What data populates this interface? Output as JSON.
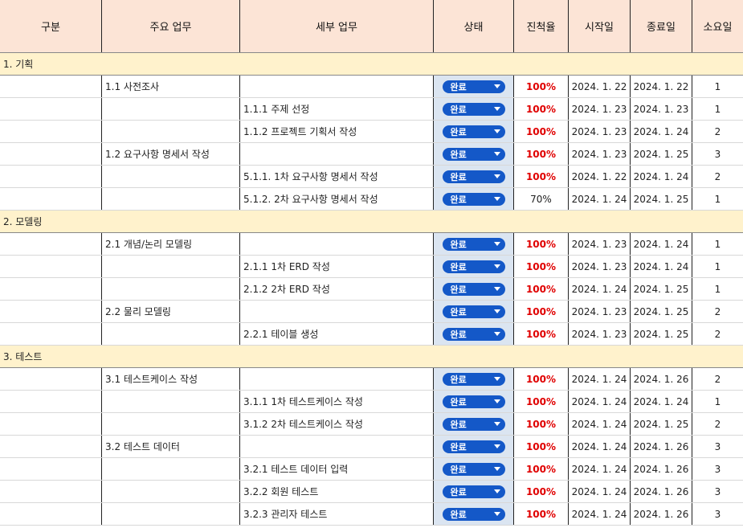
{
  "columns": [
    "구분",
    "주요 업무",
    "세부 업무",
    "상태",
    "진척율",
    "시작일",
    "종료일",
    "소요일"
  ],
  "sections": [
    {
      "title": "1.  기획",
      "rows": [
        {
          "main": "1.1 사전조사",
          "detail": "",
          "status": "완료",
          "progress": "100%",
          "start": "2024. 1. 22",
          "end": "2024. 1. 22",
          "days": "1"
        },
        {
          "main": "",
          "detail": "1.1.1 주제 선정",
          "status": "완료",
          "progress": "100%",
          "start": "2024. 1. 23",
          "end": "2024. 1. 23",
          "days": "1"
        },
        {
          "main": "",
          "detail": "1.1.2 프로젝트 기획서 작성",
          "status": "완료",
          "progress": "100%",
          "start": "2024. 1. 23",
          "end": "2024. 1. 24",
          "days": "2"
        },
        {
          "main": "1.2 요구사항 명세서 작성",
          "detail": "",
          "status": "완료",
          "progress": "100%",
          "start": "2024. 1. 23",
          "end": "2024. 1. 25",
          "days": "3"
        },
        {
          "main": "",
          "detail": "5.1.1. 1차 요구사항 명세서 작성",
          "status": "완료",
          "progress": "100%",
          "start": "2024. 1. 22",
          "end": "2024. 1. 24",
          "days": "2"
        },
        {
          "main": "",
          "detail": "5.1.2. 2차 요구사항 명세서 작성",
          "status": "완료",
          "progress": "70%",
          "start": "2024. 1. 24",
          "end": "2024. 1. 25",
          "days": "1"
        }
      ]
    },
    {
      "title": "2. 모델링",
      "rows": [
        {
          "main": "2.1 개념/논리 모델링",
          "detail": "",
          "status": "완료",
          "progress": "100%",
          "start": "2024. 1. 23",
          "end": "2024. 1. 24",
          "days": "1"
        },
        {
          "main": "",
          "detail": "2.1.1 1차 ERD 작성",
          "status": "완료",
          "progress": "100%",
          "start": "2024. 1. 23",
          "end": "2024. 1. 24",
          "days": "1"
        },
        {
          "main": "",
          "detail": "2.1.2 2차 ERD 작성",
          "status": "완료",
          "progress": "100%",
          "start": "2024. 1. 24",
          "end": "2024. 1. 25",
          "days": "1"
        },
        {
          "main": "2.2 물리 모델링",
          "detail": "",
          "status": "완료",
          "progress": "100%",
          "start": "2024. 1. 23",
          "end": "2024. 1. 25",
          "days": "2"
        },
        {
          "main": "",
          "detail": "2.2.1 테이블 생성",
          "status": "완료",
          "progress": "100%",
          "start": "2024. 1. 23",
          "end": "2024. 1. 25",
          "days": "2"
        }
      ]
    },
    {
      "title": "3. 테스트",
      "rows": [
        {
          "main": "3.1 테스트케이스 작성",
          "detail": "",
          "status": "완료",
          "progress": "100%",
          "start": "2024. 1. 24",
          "end": "2024. 1. 26",
          "days": "2"
        },
        {
          "main": "",
          "detail": "3.1.1 1차 테스트케이스 작성",
          "status": "완료",
          "progress": "100%",
          "start": "2024. 1. 24",
          "end": "2024. 1. 24",
          "days": "1"
        },
        {
          "main": "",
          "detail": "3.1.2 2차 테스트케이스 작성",
          "status": "완료",
          "progress": "100%",
          "start": "2024. 1. 24",
          "end": "2024. 1. 25",
          "days": "2"
        },
        {
          "main": "3.2 테스트 데이터",
          "detail": "",
          "status": "완료",
          "progress": "100%",
          "start": "2024. 1. 24",
          "end": "2024. 1. 26",
          "days": "3"
        },
        {
          "main": "",
          "detail": "3.2.1 테스트 데이터 입력",
          "status": "완료",
          "progress": "100%",
          "start": "2024. 1. 24",
          "end": "2024. 1. 26",
          "days": "3"
        },
        {
          "main": "",
          "detail": "3.2.2 회원 테스트",
          "status": "완료",
          "progress": "100%",
          "start": "2024. 1. 24",
          "end": "2024. 1. 26",
          "days": "3"
        },
        {
          "main": "",
          "detail": "3.2.3 관리자 테스트",
          "status": "완료",
          "progress": "100%",
          "start": "2024. 1. 24",
          "end": "2024. 1. 26",
          "days": "3"
        }
      ]
    }
  ],
  "colors": {
    "header_bg": "#fce4d6",
    "section_bg": "#fff2cc",
    "status_col_bg": "#dbe5f1",
    "status_pill": "#1458c8",
    "progress_complete": "#e00000"
  }
}
